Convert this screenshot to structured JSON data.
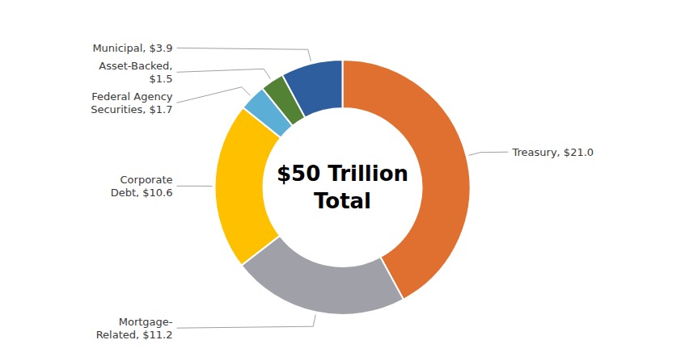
{
  "chart_data": {
    "type": "donut",
    "values": [
      21.0,
      11.2,
      10.6,
      1.7,
      1.5,
      3.9
    ],
    "value_labels": [
      "Treasury, $21.0",
      "Mortgage-\nRelated, $11.2",
      "Corporate\nDebt, $10.6",
      "Federal Agency\nSecurities, $1.7",
      "Asset-Backed,\n$1.5",
      "Municipal, $3.9"
    ],
    "colors": [
      "#E07030",
      "#A0A0A8",
      "#FFC000",
      "#5BAFD6",
      "#548235",
      "#2E5E9E"
    ],
    "annotations": [
      "$50 Trillion",
      "Total"
    ],
    "data_labels": true
  }
}
